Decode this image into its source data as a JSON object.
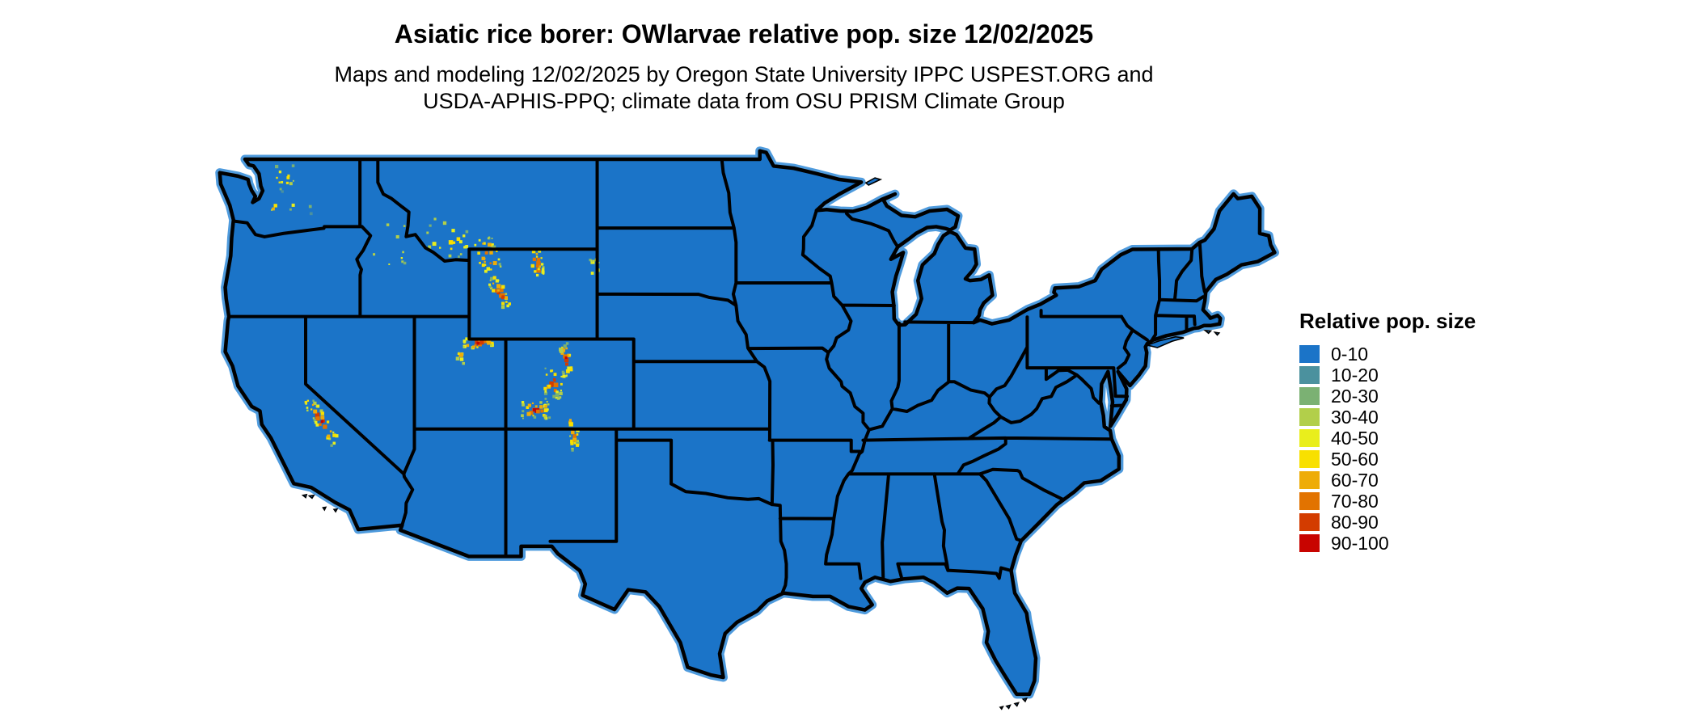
{
  "header": {
    "title": "Asiatic rice borer: OWlarvae relative pop. size 12/02/2025",
    "subtitle_line1": "Maps and modeling 12/02/2025 by Oregon State University IPPC USPEST.ORG and",
    "subtitle_line2": "USDA-APHIS-PPQ; climate data from OSU PRISM Climate Group"
  },
  "legend": {
    "title": "Relative pop. size",
    "bins": [
      {
        "label": "0-10",
        "color": "#1b74c8"
      },
      {
        "label": "10-20",
        "color": "#4b919e"
      },
      {
        "label": "20-30",
        "color": "#7bb173"
      },
      {
        "label": "30-40",
        "color": "#b2cf4a"
      },
      {
        "label": "40-50",
        "color": "#e9ee1c"
      },
      {
        "label": "50-60",
        "color": "#f8e000"
      },
      {
        "label": "60-70",
        "color": "#eeac08"
      },
      {
        "label": "70-80",
        "color": "#e27300"
      },
      {
        "label": "80-90",
        "color": "#d33c00"
      },
      {
        "label": "90-100",
        "color": "#c80400"
      }
    ]
  },
  "map": {
    "base_bin": "0-10",
    "base_color": "#1b74c8",
    "coast_halo_color": "#4f9bdd",
    "border_color": "#000000",
    "hotspots": [
      {
        "name": "north-cascades-wa",
        "lon": -121.2,
        "lat": 48.3,
        "sx": 0.55,
        "sy": 0.45,
        "angle": 0,
        "count": 10,
        "peak": "70-80"
      },
      {
        "name": "mt-rainier-wa",
        "lon": -121.75,
        "lat": 46.85,
        "sx": 0.15,
        "sy": 0.12,
        "angle": 0,
        "count": 5,
        "peak": "90-100"
      },
      {
        "name": "wa-scattered",
        "lon": -120.6,
        "lat": 47.3,
        "sx": 0.9,
        "sy": 0.8,
        "angle": 0,
        "count": 7,
        "peak": "40-50"
      },
      {
        "name": "central-idaho",
        "lon": -115.4,
        "lat": 45.2,
        "sx": 0.9,
        "sy": 0.9,
        "angle": 0,
        "count": 10,
        "peak": "50-60"
      },
      {
        "name": "sw-montana-ranges",
        "lon": -112.3,
        "lat": 45.4,
        "sx": 1.2,
        "sy": 0.75,
        "angle": 15,
        "count": 22,
        "peak": "70-80"
      },
      {
        "name": "beartooth-absaroka",
        "lon": -110.0,
        "lat": 44.7,
        "sx": 0.55,
        "sy": 0.85,
        "angle": -20,
        "count": 32,
        "peak": "90-100"
      },
      {
        "name": "bighorn-mountains",
        "lon": -107.35,
        "lat": 44.4,
        "sx": 0.3,
        "sy": 0.65,
        "angle": -15,
        "count": 22,
        "peak": "90-100"
      },
      {
        "name": "black-hills",
        "lon": -104.2,
        "lat": 44.2,
        "sx": 0.3,
        "sy": 0.35,
        "angle": 0,
        "count": 8,
        "peak": "60-70"
      },
      {
        "name": "wind-river-range",
        "lon": -109.35,
        "lat": 43.05,
        "sx": 0.3,
        "sy": 0.8,
        "angle": -35,
        "count": 34,
        "peak": "90-100"
      },
      {
        "name": "uinta-mountains",
        "lon": -110.55,
        "lat": 40.8,
        "sx": 0.85,
        "sy": 0.22,
        "angle": 0,
        "count": 26,
        "peak": "90-100"
      },
      {
        "name": "wasatch-range",
        "lon": -111.5,
        "lat": 40.3,
        "sx": 0.2,
        "sy": 0.5,
        "angle": 0,
        "count": 8,
        "peak": "70-80"
      },
      {
        "name": "co-front-range",
        "lon": -105.75,
        "lat": 40.1,
        "sx": 0.3,
        "sy": 0.75,
        "angle": -10,
        "count": 26,
        "peak": "90-100"
      },
      {
        "name": "co-sawatch-gore",
        "lon": -106.45,
        "lat": 39.0,
        "sx": 0.45,
        "sy": 0.7,
        "angle": 0,
        "count": 30,
        "peak": "90-100"
      },
      {
        "name": "san-juan-mountains",
        "lon": -107.4,
        "lat": 37.85,
        "sx": 0.75,
        "sy": 0.4,
        "angle": 0,
        "count": 34,
        "peak": "90-100"
      },
      {
        "name": "sangre-de-cristo",
        "lon": -105.35,
        "lat": 36.9,
        "sx": 0.25,
        "sy": 0.9,
        "angle": -12,
        "count": 20,
        "peak": "80-90"
      },
      {
        "name": "sierra-nevada",
        "lon": -119.15,
        "lat": 37.35,
        "sx": 0.3,
        "sy": 1.25,
        "angle": -38,
        "count": 40,
        "peak": "90-100"
      }
    ]
  }
}
